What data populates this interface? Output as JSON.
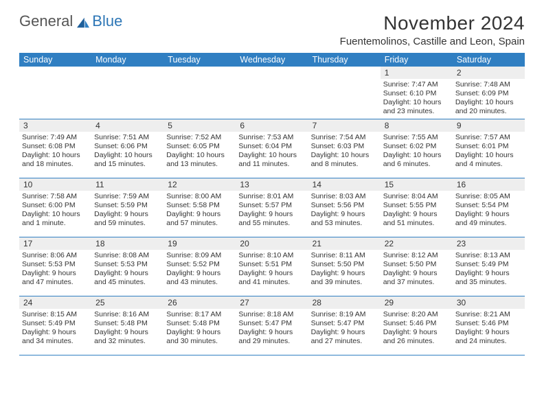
{
  "logo": {
    "part1": "General",
    "part2": "Blue"
  },
  "title": "November 2024",
  "location": "Fuentemolinos, Castille and Leon, Spain",
  "colors": {
    "header_bg": "#307fc2",
    "header_text": "#ffffff",
    "daynum_bg": "#eeeeee",
    "border": "#307fc2",
    "text": "#333333",
    "logo_gray": "#555555",
    "logo_blue": "#2d76b6",
    "background": "#ffffff"
  },
  "day_names": [
    "Sunday",
    "Monday",
    "Tuesday",
    "Wednesday",
    "Thursday",
    "Friday",
    "Saturday"
  ],
  "weeks": [
    [
      {
        "n": "",
        "sr": "",
        "ss": "",
        "dl": ""
      },
      {
        "n": "",
        "sr": "",
        "ss": "",
        "dl": ""
      },
      {
        "n": "",
        "sr": "",
        "ss": "",
        "dl": ""
      },
      {
        "n": "",
        "sr": "",
        "ss": "",
        "dl": ""
      },
      {
        "n": "",
        "sr": "",
        "ss": "",
        "dl": ""
      },
      {
        "n": "1",
        "sr": "Sunrise: 7:47 AM",
        "ss": "Sunset: 6:10 PM",
        "dl": "Daylight: 10 hours and 23 minutes."
      },
      {
        "n": "2",
        "sr": "Sunrise: 7:48 AM",
        "ss": "Sunset: 6:09 PM",
        "dl": "Daylight: 10 hours and 20 minutes."
      }
    ],
    [
      {
        "n": "3",
        "sr": "Sunrise: 7:49 AM",
        "ss": "Sunset: 6:08 PM",
        "dl": "Daylight: 10 hours and 18 minutes."
      },
      {
        "n": "4",
        "sr": "Sunrise: 7:51 AM",
        "ss": "Sunset: 6:06 PM",
        "dl": "Daylight: 10 hours and 15 minutes."
      },
      {
        "n": "5",
        "sr": "Sunrise: 7:52 AM",
        "ss": "Sunset: 6:05 PM",
        "dl": "Daylight: 10 hours and 13 minutes."
      },
      {
        "n": "6",
        "sr": "Sunrise: 7:53 AM",
        "ss": "Sunset: 6:04 PM",
        "dl": "Daylight: 10 hours and 11 minutes."
      },
      {
        "n": "7",
        "sr": "Sunrise: 7:54 AM",
        "ss": "Sunset: 6:03 PM",
        "dl": "Daylight: 10 hours and 8 minutes."
      },
      {
        "n": "8",
        "sr": "Sunrise: 7:55 AM",
        "ss": "Sunset: 6:02 PM",
        "dl": "Daylight: 10 hours and 6 minutes."
      },
      {
        "n": "9",
        "sr": "Sunrise: 7:57 AM",
        "ss": "Sunset: 6:01 PM",
        "dl": "Daylight: 10 hours and 4 minutes."
      }
    ],
    [
      {
        "n": "10",
        "sr": "Sunrise: 7:58 AM",
        "ss": "Sunset: 6:00 PM",
        "dl": "Daylight: 10 hours and 1 minute."
      },
      {
        "n": "11",
        "sr": "Sunrise: 7:59 AM",
        "ss": "Sunset: 5:59 PM",
        "dl": "Daylight: 9 hours and 59 minutes."
      },
      {
        "n": "12",
        "sr": "Sunrise: 8:00 AM",
        "ss": "Sunset: 5:58 PM",
        "dl": "Daylight: 9 hours and 57 minutes."
      },
      {
        "n": "13",
        "sr": "Sunrise: 8:01 AM",
        "ss": "Sunset: 5:57 PM",
        "dl": "Daylight: 9 hours and 55 minutes."
      },
      {
        "n": "14",
        "sr": "Sunrise: 8:03 AM",
        "ss": "Sunset: 5:56 PM",
        "dl": "Daylight: 9 hours and 53 minutes."
      },
      {
        "n": "15",
        "sr": "Sunrise: 8:04 AM",
        "ss": "Sunset: 5:55 PM",
        "dl": "Daylight: 9 hours and 51 minutes."
      },
      {
        "n": "16",
        "sr": "Sunrise: 8:05 AM",
        "ss": "Sunset: 5:54 PM",
        "dl": "Daylight: 9 hours and 49 minutes."
      }
    ],
    [
      {
        "n": "17",
        "sr": "Sunrise: 8:06 AM",
        "ss": "Sunset: 5:53 PM",
        "dl": "Daylight: 9 hours and 47 minutes."
      },
      {
        "n": "18",
        "sr": "Sunrise: 8:08 AM",
        "ss": "Sunset: 5:53 PM",
        "dl": "Daylight: 9 hours and 45 minutes."
      },
      {
        "n": "19",
        "sr": "Sunrise: 8:09 AM",
        "ss": "Sunset: 5:52 PM",
        "dl": "Daylight: 9 hours and 43 minutes."
      },
      {
        "n": "20",
        "sr": "Sunrise: 8:10 AM",
        "ss": "Sunset: 5:51 PM",
        "dl": "Daylight: 9 hours and 41 minutes."
      },
      {
        "n": "21",
        "sr": "Sunrise: 8:11 AM",
        "ss": "Sunset: 5:50 PM",
        "dl": "Daylight: 9 hours and 39 minutes."
      },
      {
        "n": "22",
        "sr": "Sunrise: 8:12 AM",
        "ss": "Sunset: 5:50 PM",
        "dl": "Daylight: 9 hours and 37 minutes."
      },
      {
        "n": "23",
        "sr": "Sunrise: 8:13 AM",
        "ss": "Sunset: 5:49 PM",
        "dl": "Daylight: 9 hours and 35 minutes."
      }
    ],
    [
      {
        "n": "24",
        "sr": "Sunrise: 8:15 AM",
        "ss": "Sunset: 5:49 PM",
        "dl": "Daylight: 9 hours and 34 minutes."
      },
      {
        "n": "25",
        "sr": "Sunrise: 8:16 AM",
        "ss": "Sunset: 5:48 PM",
        "dl": "Daylight: 9 hours and 32 minutes."
      },
      {
        "n": "26",
        "sr": "Sunrise: 8:17 AM",
        "ss": "Sunset: 5:48 PM",
        "dl": "Daylight: 9 hours and 30 minutes."
      },
      {
        "n": "27",
        "sr": "Sunrise: 8:18 AM",
        "ss": "Sunset: 5:47 PM",
        "dl": "Daylight: 9 hours and 29 minutes."
      },
      {
        "n": "28",
        "sr": "Sunrise: 8:19 AM",
        "ss": "Sunset: 5:47 PM",
        "dl": "Daylight: 9 hours and 27 minutes."
      },
      {
        "n": "29",
        "sr": "Sunrise: 8:20 AM",
        "ss": "Sunset: 5:46 PM",
        "dl": "Daylight: 9 hours and 26 minutes."
      },
      {
        "n": "30",
        "sr": "Sunrise: 8:21 AM",
        "ss": "Sunset: 5:46 PM",
        "dl": "Daylight: 9 hours and 24 minutes."
      }
    ]
  ]
}
